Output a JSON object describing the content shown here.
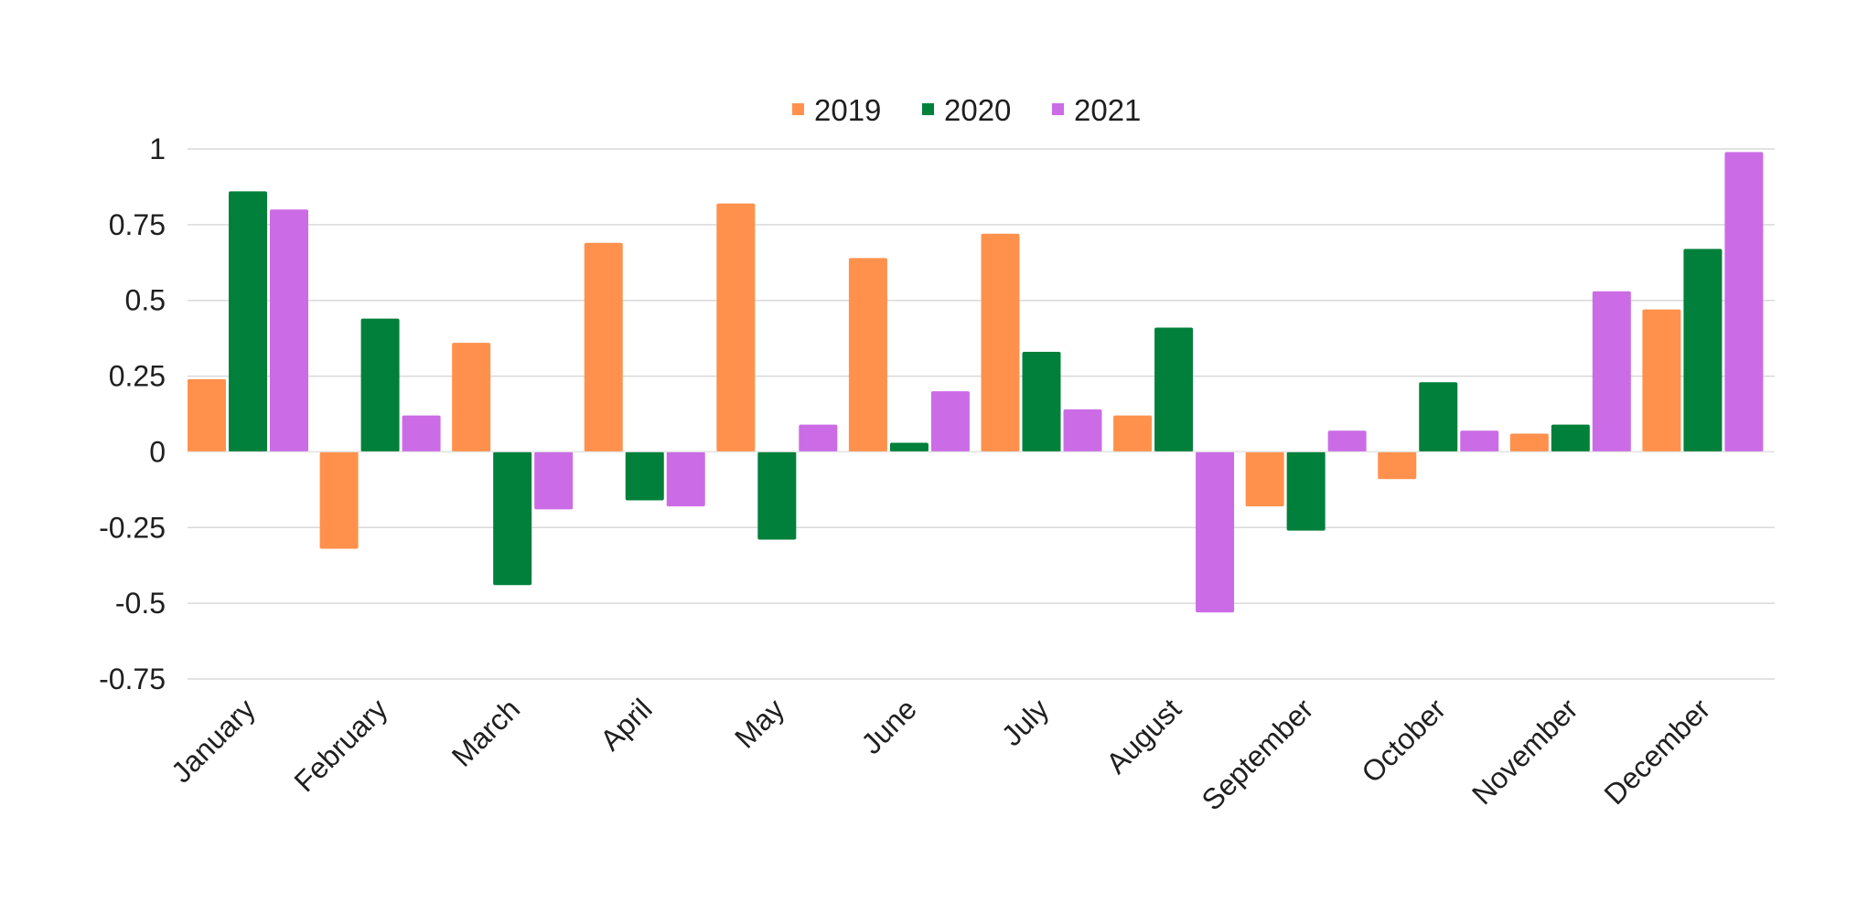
{
  "chart_data": {
    "type": "bar",
    "title": "",
    "xlabel": "",
    "ylabel": "",
    "ylim": [
      -0.75,
      1
    ],
    "yticks": [
      "1",
      "0.75",
      "0.5",
      "0.25",
      "0",
      "-0.25",
      "-0.5",
      "-0.75"
    ],
    "ytick_values": [
      1,
      0.75,
      0.5,
      0.25,
      0,
      -0.25,
      -0.5,
      -0.75
    ],
    "grid": true,
    "legend_position": "top-center",
    "categories": [
      "January",
      "February",
      "March",
      "April",
      "May",
      "June",
      "July",
      "August",
      "September",
      "October",
      "November",
      "December"
    ],
    "series": [
      {
        "name": "2019",
        "color": "#ff914d",
        "values": [
          0.24,
          -0.32,
          0.36,
          0.69,
          0.82,
          0.64,
          0.72,
          0.12,
          -0.18,
          -0.09,
          0.06,
          0.47
        ]
      },
      {
        "name": "2020",
        "color": "#00803a",
        "values": [
          0.86,
          0.44,
          -0.44,
          -0.16,
          -0.29,
          0.03,
          0.33,
          0.41,
          -0.26,
          0.23,
          0.09,
          0.67
        ]
      },
      {
        "name": "2021",
        "color": "#cb6ce6",
        "values": [
          0.8,
          0.12,
          -0.19,
          -0.18,
          0.09,
          0.2,
          0.14,
          -0.53,
          0.07,
          0.07,
          0.53,
          0.99
        ]
      }
    ]
  }
}
